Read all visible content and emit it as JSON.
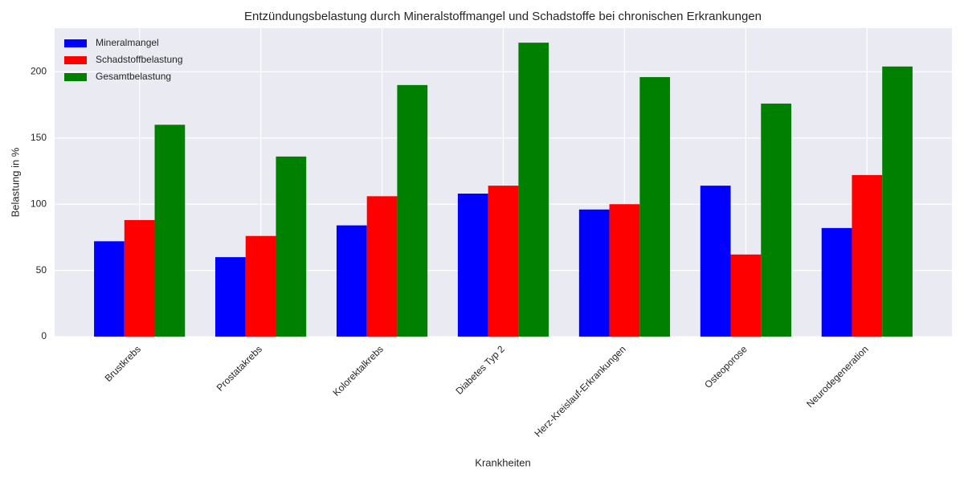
{
  "chart_data": {
    "type": "bar",
    "title": "Entzündungsbelastung durch Mineralstoffmangel und Schadstoffe bei chronischen Erkrankungen",
    "x_label": "Krankheiten",
    "y_label": "Belastung in %",
    "categories": [
      "Brustkrebs",
      "Prostatakrebs",
      "Kolorektalkrebs",
      "Diabetes Typ 2",
      "Herz-Kreislauf-Erkrankungen",
      "Osteoporose",
      "Neurodegeneration"
    ],
    "series": [
      {
        "name": "Mineralmangel",
        "color": "#0000ff",
        "values": [
          72,
          60,
          84,
          108,
          96,
          114,
          82
        ]
      },
      {
        "name": "Schadstoffbelastung",
        "color": "#ff0000",
        "values": [
          88,
          76,
          106,
          114,
          100,
          62,
          122
        ]
      },
      {
        "name": "Gesamtbelastung",
        "color": "#008000",
        "values": [
          160,
          136,
          190,
          222,
          196,
          176,
          204
        ]
      }
    ],
    "ylim": [
      0,
      233
    ],
    "yticks": [
      0,
      50,
      100,
      150,
      200
    ],
    "grid": true,
    "legend": "upper-left"
  }
}
